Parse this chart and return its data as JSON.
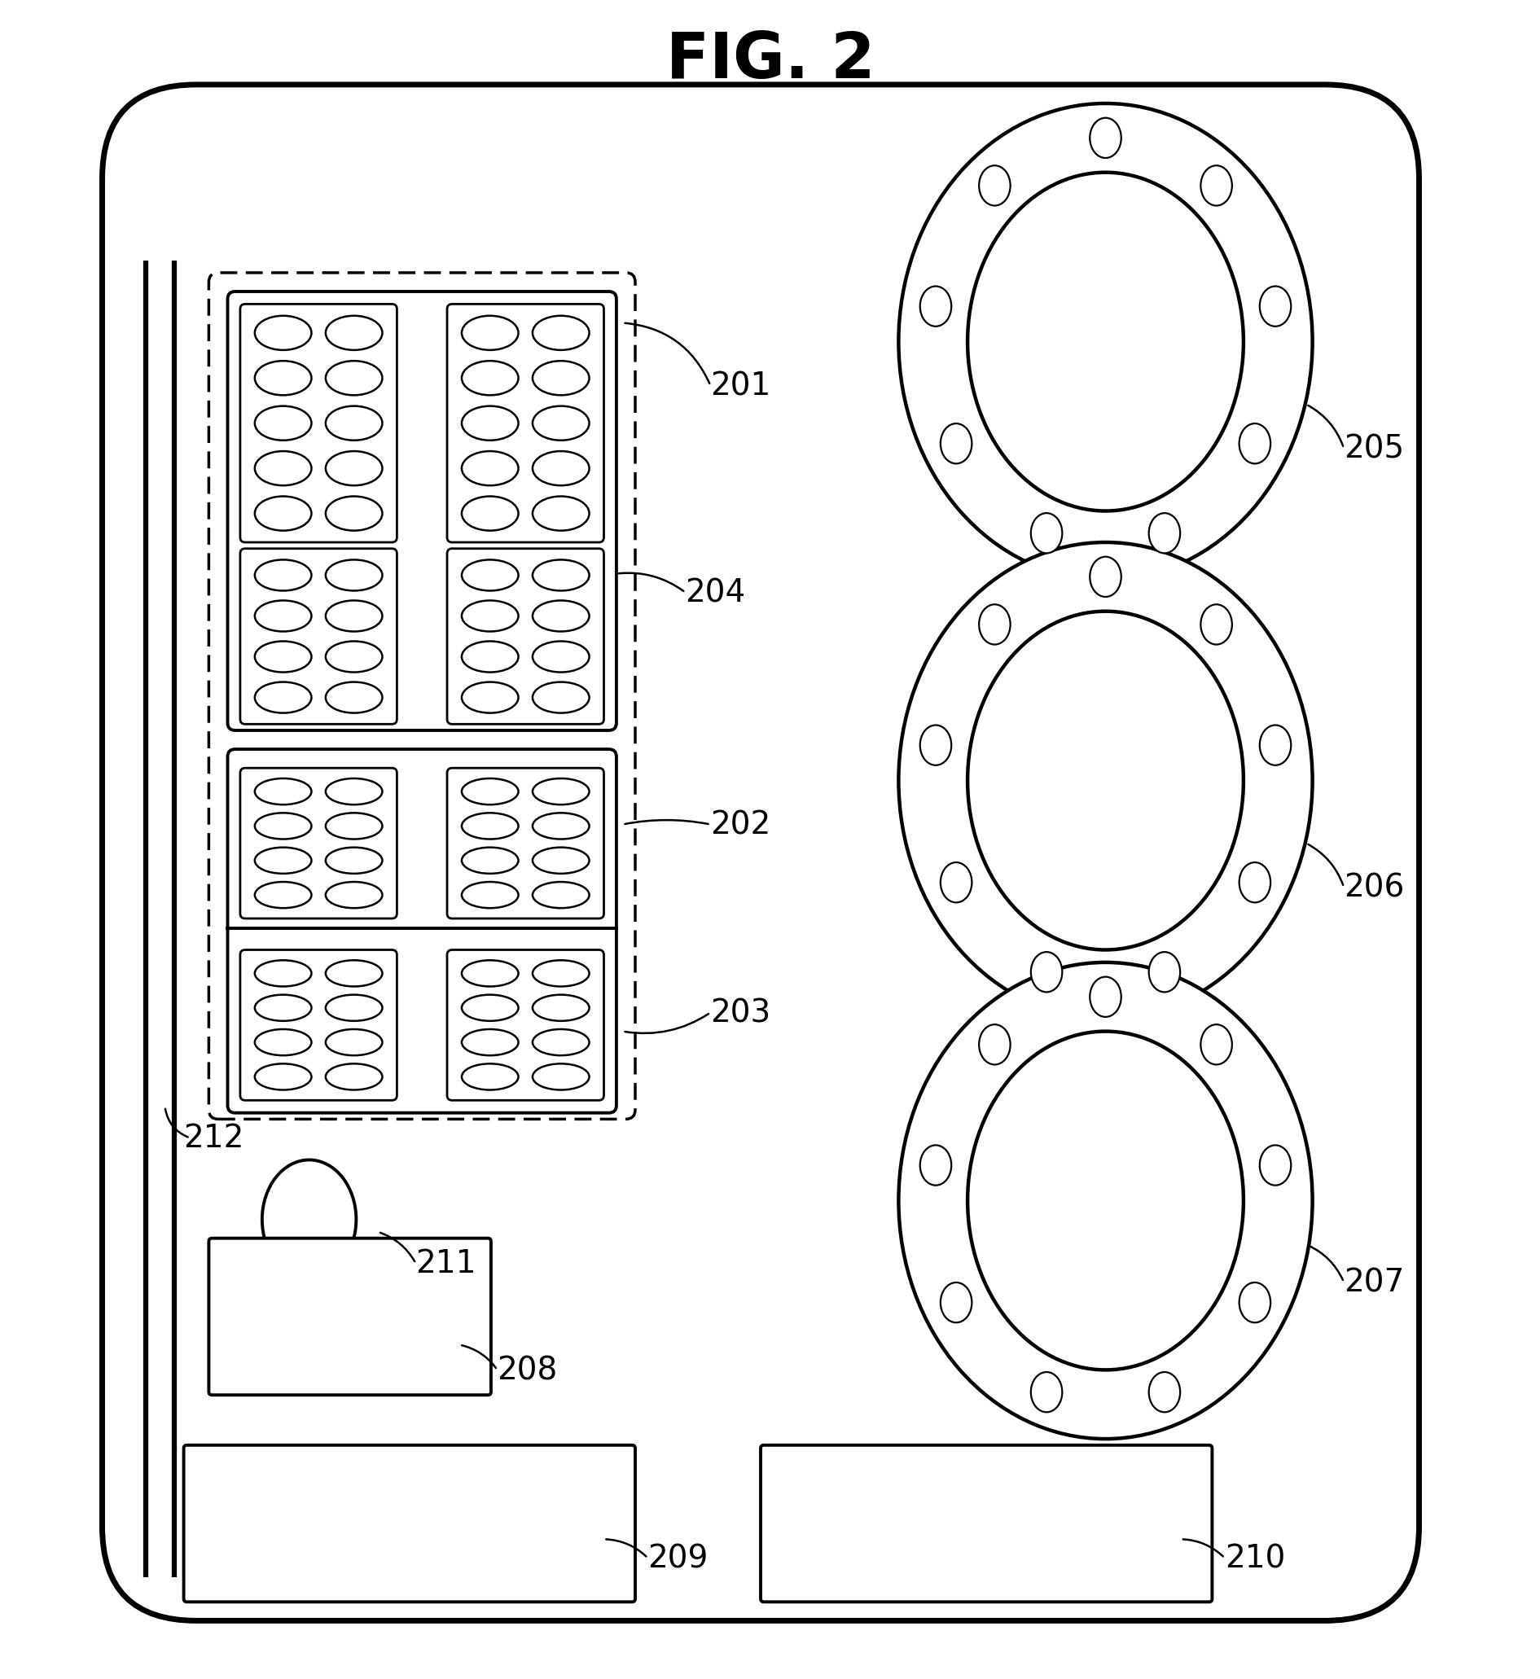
{
  "title": "FIG. 2",
  "bg_color": "#ffffff",
  "fig_width": 24.31,
  "fig_height": 26.53,
  "label_fontsize": 28,
  "title_fontsize": 56
}
